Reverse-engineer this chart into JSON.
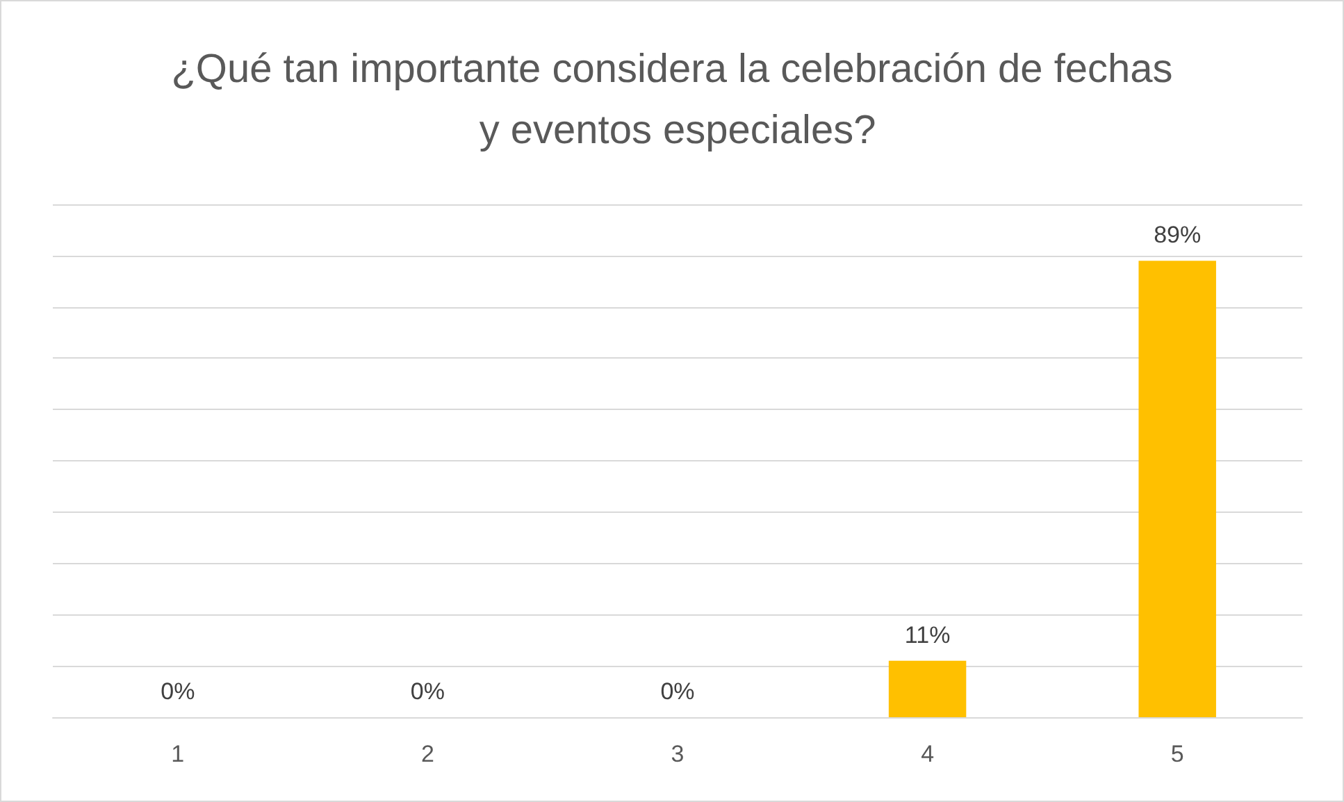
{
  "chart_data": {
    "type": "bar",
    "title": "¿Qué tan importante considera la celebración de fechas y eventos especiales?",
    "categories": [
      "1",
      "2",
      "3",
      "4",
      "5"
    ],
    "values": [
      0,
      0,
      0,
      11,
      89
    ],
    "value_labels": [
      "0%",
      "0%",
      "0%",
      "11%",
      "89%"
    ],
    "color": "#ffc000",
    "ylim": [
      0,
      100
    ],
    "yticks": [
      {
        "value": 0,
        "label": null
      },
      {
        "value": 10,
        "label": null
      },
      {
        "value": 20,
        "label": null
      },
      {
        "value": 30,
        "label": null
      },
      {
        "value": 40,
        "label": null
      },
      {
        "value": 50,
        "label": null
      },
      {
        "value": 60,
        "label": null
      },
      {
        "value": 70,
        "label": null
      },
      {
        "value": 80,
        "label": null
      },
      {
        "value": 90,
        "label": null
      },
      {
        "value": 100,
        "label": null
      }
    ],
    "grid": "y",
    "tick_labels": "x"
  }
}
